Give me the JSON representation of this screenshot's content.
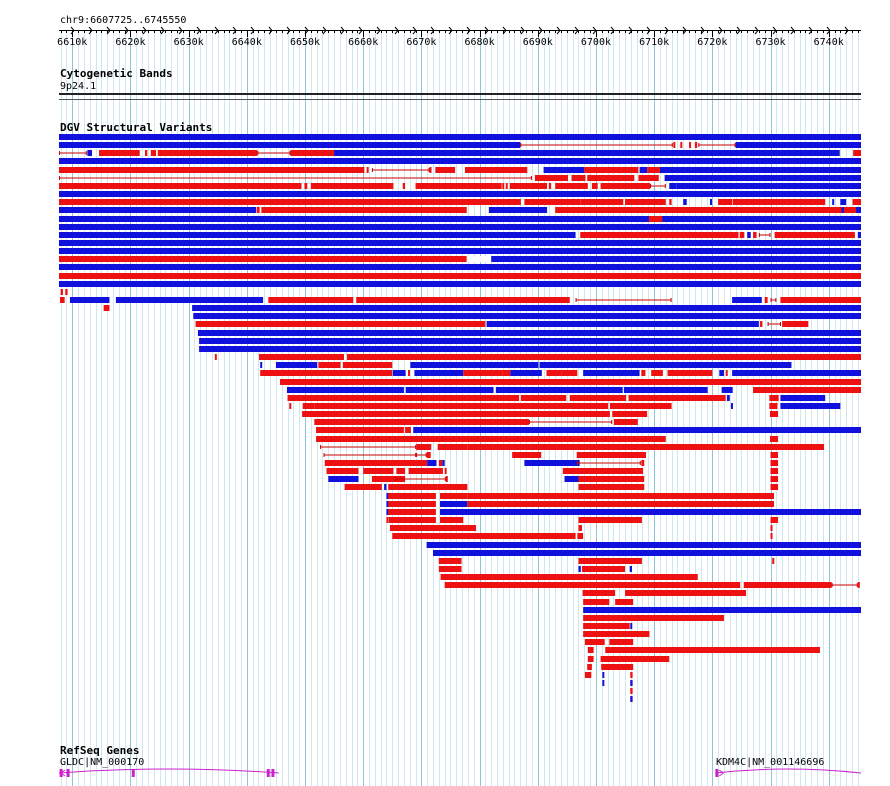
{
  "ruler": {
    "location": "chr9:6607725..6745550",
    "start_bp": 6607725,
    "end_bp": 6745550,
    "tick_labels": [
      "6610k",
      "6620k",
      "6630k",
      "6640k",
      "6650k",
      "6660k",
      "6670k",
      "6680k",
      "6690k",
      "6700k",
      "6710k",
      "6720k",
      "6730k",
      "6740k"
    ]
  },
  "tracks": {
    "cytoband": {
      "title": "Cytogenetic Bands",
      "band_label": "9p24.1"
    },
    "dgv": {
      "title": "DGV Structural Variants",
      "colors": {
        "loss": "#ee1111",
        "gain": "#1111dd",
        "link": "#cc0000"
      }
    },
    "refseq": {
      "title": "RefSeq Genes",
      "color": "#cc22cc",
      "genes": [
        {
          "label": "GLDC|NM_000170",
          "start_bp": 6532000,
          "end_bp": 6645500,
          "strand": "-",
          "exons_bp": [
            6608000,
            6609200,
            6620400,
            6643600,
            6644400
          ]
        },
        {
          "label": "KDM4C|NM_001146696",
          "start_bp": 6720500,
          "end_bp": 6950000,
          "strand": "+",
          "exons_bp": [
            6720700
          ]
        }
      ]
    }
  }
}
